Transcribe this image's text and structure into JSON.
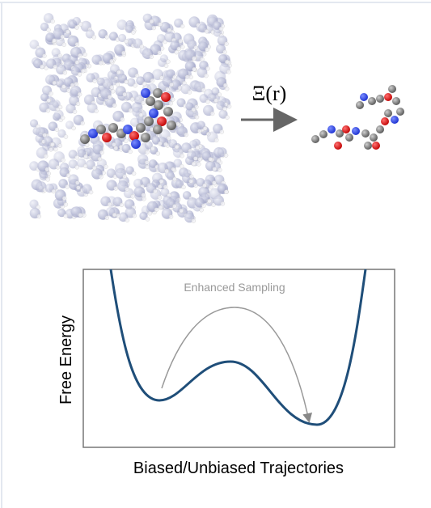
{
  "mapping_label": "Ξ(r)",
  "plot": {
    "annotation": "Enhanced Sampling",
    "y_label": "Free Energy",
    "x_label": "Biased/Unbiased Trajectories"
  }
}
